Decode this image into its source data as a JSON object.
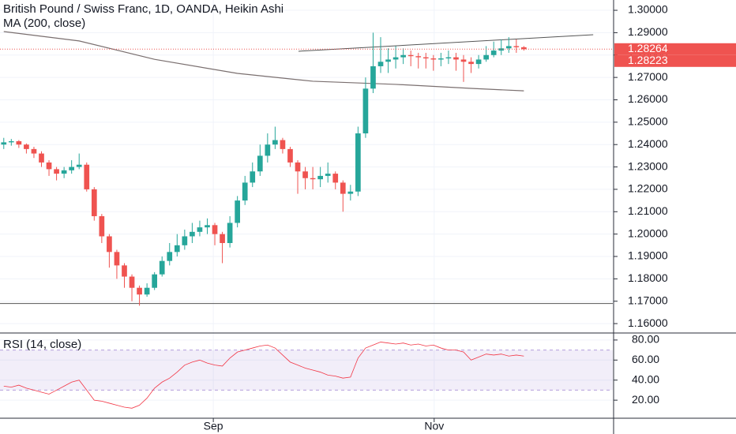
{
  "chart_data": [
    {
      "type": "candlestick",
      "title": "British Pound / Swiss Franc, 1D, OANDA, Heikin Ashi",
      "subtitle": "MA (200, close)",
      "up_color": "#26a69a",
      "down_color": "#ef5350",
      "open": [
        1.24,
        1.241,
        1.2415,
        1.24,
        1.238,
        1.236,
        1.232,
        1.229,
        1.227,
        1.2285,
        1.23,
        1.231,
        1.22,
        1.208,
        1.199,
        1.192,
        1.186,
        1.181,
        1.176,
        1.173,
        1.176,
        1.182,
        1.188,
        1.192,
        1.195,
        1.199,
        1.201,
        1.203,
        1.204,
        1.2,
        1.196,
        1.205,
        1.215,
        1.223,
        1.228,
        1.235,
        1.24,
        1.242,
        1.238,
        1.232,
        1.228,
        1.225,
        1.2245,
        1.226,
        1.227,
        1.223,
        1.218,
        1.219,
        1.245,
        1.265,
        1.275,
        1.277,
        1.278,
        1.279,
        1.28,
        1.2795,
        1.279,
        1.2785,
        1.278,
        1.2785,
        1.279,
        1.278,
        1.277,
        1.276,
        1.278,
        1.28,
        1.282,
        1.283,
        1.284,
        1.2835
      ],
      "high": [
        1.243,
        1.2425,
        1.242,
        1.2405,
        1.239,
        1.237,
        1.233,
        1.23,
        1.23,
        1.233,
        1.236,
        1.232,
        1.221,
        1.209,
        1.2,
        1.193,
        1.187,
        1.182,
        1.177,
        1.178,
        1.183,
        1.19,
        1.196,
        1.2,
        1.202,
        1.205,
        1.206,
        1.207,
        1.205,
        1.201,
        1.208,
        1.217,
        1.226,
        1.232,
        1.24,
        1.245,
        1.248,
        1.243,
        1.239,
        1.233,
        1.23,
        1.23,
        1.23,
        1.232,
        1.228,
        1.224,
        1.222,
        1.248,
        1.27,
        1.29,
        1.288,
        1.283,
        1.284,
        1.283,
        1.282,
        1.281,
        1.281,
        1.28,
        1.281,
        1.282,
        1.281,
        1.28,
        1.279,
        1.28,
        1.284,
        1.286,
        1.287,
        1.288,
        1.287,
        1.284
      ],
      "low": [
        1.238,
        1.2395,
        1.2385,
        1.236,
        1.234,
        1.23,
        1.226,
        1.224,
        1.225,
        1.227,
        1.229,
        1.219,
        1.206,
        1.196,
        1.185,
        1.18,
        1.176,
        1.17,
        1.168,
        1.172,
        1.175,
        1.181,
        1.186,
        1.19,
        1.193,
        1.196,
        1.199,
        1.2,
        1.195,
        1.187,
        1.194,
        1.203,
        1.213,
        1.221,
        1.226,
        1.232,
        1.238,
        1.236,
        1.23,
        1.218,
        1.22,
        1.22,
        1.221,
        1.223,
        1.22,
        1.21,
        1.215,
        1.217,
        1.243,
        1.263,
        1.272,
        1.272,
        1.274,
        1.276,
        1.275,
        1.274,
        1.274,
        1.273,
        1.275,
        1.276,
        1.273,
        1.268,
        1.272,
        1.274,
        1.277,
        1.279,
        1.28,
        1.281,
        1.281,
        1.282
      ],
      "close": [
        1.241,
        1.2415,
        1.24,
        1.238,
        1.236,
        1.232,
        1.229,
        1.227,
        1.2285,
        1.23,
        1.231,
        1.22,
        1.208,
        1.199,
        1.192,
        1.186,
        1.181,
        1.176,
        1.173,
        1.176,
        1.182,
        1.188,
        1.192,
        1.195,
        1.199,
        1.201,
        1.203,
        1.204,
        1.2,
        1.196,
        1.205,
        1.215,
        1.223,
        1.228,
        1.235,
        1.24,
        1.242,
        1.238,
        1.232,
        1.228,
        1.225,
        1.2245,
        1.226,
        1.227,
        1.223,
        1.218,
        1.219,
        1.245,
        1.265,
        1.275,
        1.277,
        1.278,
        1.279,
        1.28,
        1.2795,
        1.279,
        1.2785,
        1.278,
        1.2785,
        1.279,
        1.278,
        1.277,
        1.276,
        1.278,
        1.28,
        1.282,
        1.283,
        1.284,
        1.2835,
        1.2826
      ],
      "ma": {
        "color": "#7a6f6f",
        "x": [
          0,
          10,
          20,
          31,
          41,
          52,
          62,
          69
        ],
        "values": [
          1.2905,
          1.2863,
          1.2781,
          1.2718,
          1.2683,
          1.2669,
          1.2651,
          1.264
        ]
      },
      "trendline": {
        "x": [
          39.1,
          78.2
        ],
        "values": [
          1.2817,
          1.2891
        ]
      },
      "support": 1.169,
      "price_labels": [
        1.28264,
        1.28223
      ],
      "xlim": [
        -0.5,
        80.8
      ],
      "ylim": [
        1.1558,
        1.3046
      ],
      "yticks": [
        {
          "value": 1.16,
          "label": "1.16000"
        },
        {
          "value": 1.17,
          "label": "1.17000"
        },
        {
          "value": 1.18,
          "label": "1.18000"
        },
        {
          "value": 1.19,
          "label": "1.19000"
        },
        {
          "value": 1.2,
          "label": "1.20000"
        },
        {
          "value": 1.21,
          "label": "1.21000"
        },
        {
          "value": 1.22,
          "label": "1.22000"
        },
        {
          "value": 1.23,
          "label": "1.23000"
        },
        {
          "value": 1.24,
          "label": "1.24000"
        },
        {
          "value": 1.25,
          "label": "1.25000"
        },
        {
          "value": 1.26,
          "label": "1.26000"
        },
        {
          "value": 1.27,
          "label": "1.27000"
        },
        {
          "value": 1.28,
          "label": "1.28000"
        },
        {
          "value": 1.29,
          "label": "1.29000"
        },
        {
          "value": 1.3,
          "label": "1.30000"
        }
      ]
    },
    {
      "type": "line",
      "title": "RSI (14, close)",
      "color": "#f23645",
      "band": [
        30,
        70
      ],
      "values": [
        34,
        33,
        35,
        32,
        30,
        28,
        26,
        30,
        34,
        38,
        40,
        30,
        20,
        19,
        17,
        15,
        13,
        12,
        15,
        22,
        32,
        38,
        42,
        48,
        55,
        58,
        60,
        57,
        55,
        54,
        62,
        68,
        70,
        72,
        74,
        75,
        72,
        65,
        58,
        55,
        52,
        50,
        48,
        45,
        44,
        42,
        43,
        62,
        72,
        75,
        78,
        77,
        76,
        77,
        75,
        76,
        74,
        75,
        72,
        70,
        70,
        68,
        60,
        63,
        66,
        65,
        66,
        64,
        65,
        64
      ],
      "xlim": [
        -0.5,
        80.8
      ],
      "ylim": [
        2,
        87
      ],
      "yticks": [
        {
          "value": 20,
          "label": "20.00"
        },
        {
          "value": 40,
          "label": "40.00"
        },
        {
          "value": 60,
          "label": "60.00"
        },
        {
          "value": 80,
          "label": "80.00"
        }
      ],
      "xticks": [
        {
          "value": 27.8,
          "label": "Sep"
        },
        {
          "value": 57.1,
          "label": "Nov"
        }
      ]
    }
  ]
}
